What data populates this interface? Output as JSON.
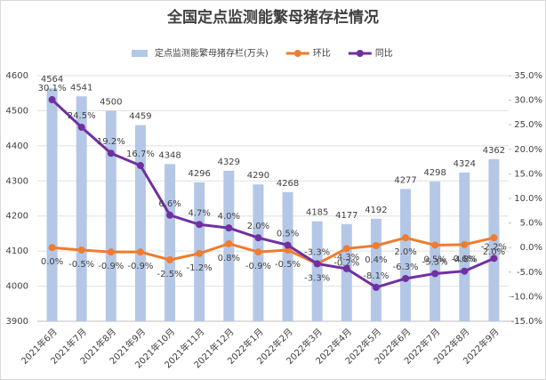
{
  "chart_data": {
    "type": "combo",
    "title": "全国定点监测能繁母猪存栏情况",
    "categories": [
      "2021年6月",
      "2021年7月",
      "2021年8月",
      "2021年9月",
      "2021年10月",
      "2021年11月",
      "2021年12月",
      "2022年1月",
      "2022年2月",
      "2022年3月",
      "2022年4月",
      "2022年5月",
      "2022年6月",
      "2022年7月",
      "2022年8月",
      "2022年9月"
    ],
    "series": [
      {
        "name": "定点监测能繁母猪存栏(万头)",
        "type": "bar",
        "color": "#b4c7e7",
        "values": [
          4564,
          4541,
          4500,
          4459,
          4348,
          4296,
          4329,
          4290,
          4268,
          4185,
          4177,
          4192,
          4277,
          4298,
          4324,
          4362
        ]
      },
      {
        "name": "环比",
        "type": "line",
        "axis": "y2",
        "color": "#ed7d31",
        "label_side": "below",
        "values": [
          0.0,
          -0.5,
          -0.9,
          -0.9,
          -2.5,
          -1.2,
          0.8,
          -0.9,
          -0.5,
          -3.3,
          -0.2,
          0.4,
          2.0,
          0.5,
          0.6,
          2.0
        ],
        "value_labels": [
          "0.0%",
          "-0.5%",
          "-0.9%",
          "-0.9%",
          "-2.5%",
          "-1.2%",
          "0.8%",
          "-0.9%",
          "-0.5%",
          "-3.3%",
          "-0.2%",
          "0.4%",
          "2.0%",
          "0.5%",
          "0.6%",
          "2.0%"
        ]
      },
      {
        "name": "同比",
        "type": "line",
        "axis": "y2",
        "color": "#7030a0",
        "label_side": "above",
        "values": [
          30.1,
          24.5,
          19.2,
          16.7,
          6.6,
          4.7,
          4.0,
          2.0,
          0.5,
          -3.3,
          -4.3,
          -8.1,
          -6.3,
          -5.3,
          -4.8,
          -2.2
        ],
        "value_labels": [
          "30.1%",
          "24.5%",
          "19.2%",
          "16.7%",
          "6.6%",
          "4.7%",
          "4.0%",
          "2.0%",
          "0.5%",
          "-3.3%",
          "-4.3%",
          "-8.1%",
          "-6.3%",
          "-5.3%",
          "-4.8%",
          "-2.2%"
        ]
      }
    ],
    "ylim": [
      3900,
      4600
    ],
    "yticks": [
      3900,
      4000,
      4100,
      4200,
      4300,
      4400,
      4500,
      4600
    ],
    "y2lim": [
      -15,
      35
    ],
    "y2ticks": [
      {
        "value": -15,
        "label": "-15.0%"
      },
      {
        "value": -10,
        "label": "-10.0%"
      },
      {
        "value": -5,
        "label": "-5.0%"
      },
      {
        "value": 0,
        "label": "0.0%"
      },
      {
        "value": 5,
        "label": "5.0%"
      },
      {
        "value": 10,
        "label": "10.0%"
      },
      {
        "value": 15,
        "label": "15.0%"
      },
      {
        "value": 20,
        "label": "20.0%"
      },
      {
        "value": 25,
        "label": "25.0%"
      },
      {
        "value": 30,
        "label": "30.0%"
      },
      {
        "value": 35,
        "label": "35.0%"
      }
    ],
    "legend": "top"
  }
}
